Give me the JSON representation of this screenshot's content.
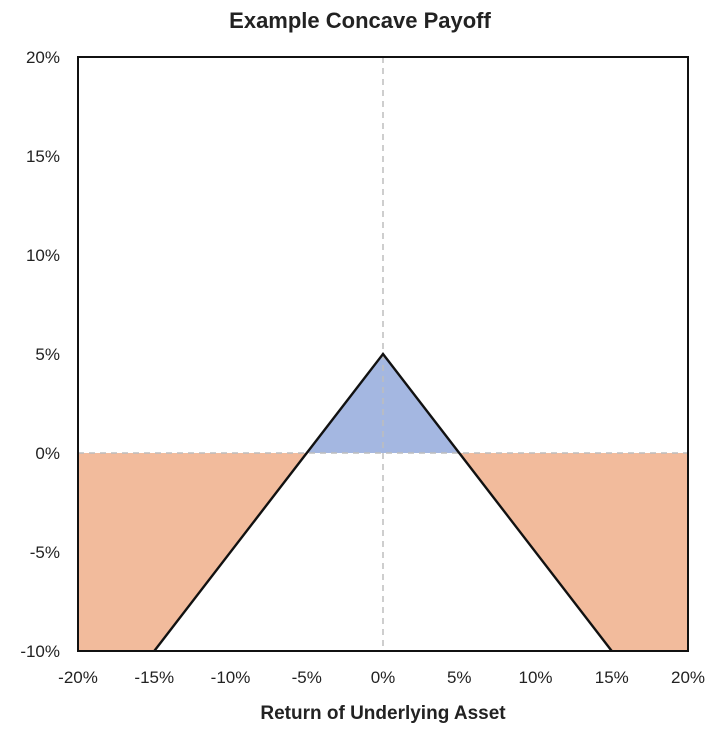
{
  "chart_data": {
    "type": "area",
    "title": "Example Concave Payoff",
    "xlabel": "Return of Underlying Asset",
    "ylabel": "",
    "xlim": [
      -20,
      20
    ],
    "ylim": [
      -10,
      20
    ],
    "x_ticks": [
      "-20%",
      "-15%",
      "-10%",
      "-5%",
      "0%",
      "5%",
      "10%",
      "15%",
      "20%"
    ],
    "y_ticks": [
      "20%",
      "15%",
      "10%",
      "5%",
      "0%",
      "-5%",
      "-10%"
    ],
    "x_tick_values": [
      -20,
      -15,
      -10,
      -5,
      0,
      5,
      10,
      15,
      20
    ],
    "y_tick_values": [
      20,
      15,
      10,
      5,
      0,
      -5,
      -10
    ],
    "series": [
      {
        "x": [
          -15,
          -5,
          0,
          5,
          15
        ],
        "y": [
          -10,
          0,
          5,
          0,
          -10
        ]
      }
    ],
    "shaded_regions": [
      {
        "kind": "gain",
        "color": "#a4b7e1",
        "x_range": [
          -5,
          5
        ]
      },
      {
        "kind": "loss",
        "color": "#f2bb9c",
        "x_range": [
          -20,
          -5
        ]
      },
      {
        "kind": "loss",
        "color": "#f2bb9c",
        "x_range": [
          5,
          20
        ]
      }
    ],
    "reference_lines": [
      {
        "axis": "x",
        "value": 0,
        "style": "dashed"
      },
      {
        "axis": "y",
        "value": 0,
        "style": "dashed"
      }
    ],
    "grid": false,
    "line_color": "#111111"
  }
}
